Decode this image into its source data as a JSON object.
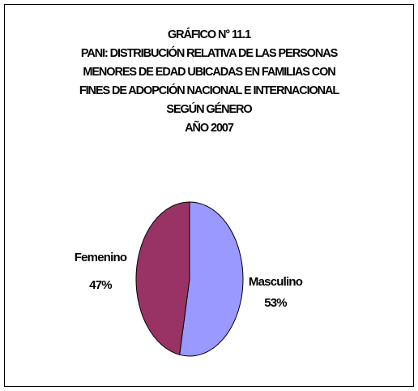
{
  "title": {
    "lines": [
      "GRÁFICO N° 11.1",
      "PANI: DISTRIBUCIÓN RELATIVA DE LAS PERSONAS",
      "MENORES DE EDAD UBICADAS EN FAMILIAS CON",
      "FINES DE ADOPCIÓN NACIONAL E INTERNACIONAL",
      "SEGÚN GÉNERO",
      "AÑO 2007"
    ]
  },
  "chart_data": {
    "type": "pie",
    "title": "GRÁFICO N° 11.1 PANI: DISTRIBUCIÓN RELATIVA DE LAS PERSONAS MENORES DE EDAD UBICADAS EN FAMILIAS CON FINES DE ADOPCIÓN NACIONAL E INTERNACIONAL SEGÚN GÉNERO AÑO 2007",
    "slices": [
      {
        "label": "Masculino",
        "value": 53,
        "percent_label": "53%",
        "color": "#9999FF"
      },
      {
        "label": "Femenino",
        "value": 47,
        "percent_label": "47%",
        "color": "#993366"
      }
    ],
    "legend": "none",
    "data_labels": "outside"
  }
}
